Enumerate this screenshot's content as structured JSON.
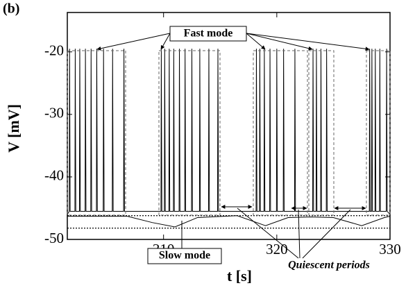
{
  "chart_data": {
    "type": "line",
    "panel_label": "(b)",
    "xlabel": "t [s]",
    "ylabel": "V [mV]",
    "annotations": [
      "Fast mode",
      "Slow mode",
      "Quiescent periods"
    ],
    "xlim": [
      301.5,
      330
    ],
    "ylim": [
      -50,
      -13.7
    ],
    "xticks": [
      310,
      320,
      330
    ],
    "yticks": [
      -20,
      -30,
      -40,
      -50
    ],
    "hlines": [
      -46.2,
      -48.2
    ],
    "series": [
      {
        "color": "#000000",
        "x": [
          301.5,
          301.67,
          301.7,
          301.75,
          302.17,
          302.2,
          302.25,
          302.57,
          302.6,
          302.65,
          303.07,
          303.1,
          303.15,
          303.57,
          303.6,
          303.65,
          304.07,
          304.1,
          304.15,
          304.67,
          304.7,
          304.75,
          305.47,
          305.5,
          305.55,
          306.47,
          306.5,
          306.55,
          309.77,
          309.8,
          309.85,
          310.07,
          310.1,
          310.15,
          310.47,
          310.5,
          310.55,
          310.87,
          310.9,
          310.95,
          311.37,
          311.4,
          311.45,
          311.87,
          311.9,
          311.95,
          312.47,
          312.5,
          312.55,
          313.17,
          313.2,
          313.25,
          313.97,
          314,
          314.05,
          314.77,
          314.8,
          314.85,
          318.17,
          318.2,
          318.25,
          318.47,
          318.5,
          318.55,
          318.87,
          318.9,
          318.95,
          319.37,
          319.4,
          319.45,
          319.97,
          320,
          320.05,
          320.57,
          320.6,
          320.65,
          321.57,
          321.6,
          321.65,
          323.17,
          323.2,
          323.25,
          323.47,
          323.5,
          323.55,
          323.87,
          323.9,
          323.95,
          324.37,
          324.4,
          324.45,
          328.17,
          328.2,
          328.25,
          328.37,
          328.4,
          328.45,
          328.67,
          328.7,
          328.75,
          329.07,
          329.1,
          329.15,
          329.67,
          329.7,
          329.75,
          330
        ],
        "values": [
          -46,
          -45.5,
          -19.5,
          -45.5,
          -45.5,
          -19.5,
          -45.5,
          -45.5,
          -19.5,
          -45.5,
          -45.5,
          -19.5,
          -45.5,
          -45.5,
          -19.5,
          -45.5,
          -45.5,
          -19.5,
          -45.5,
          -45.5,
          -19.5,
          -45.5,
          -45.5,
          -19.5,
          -45.5,
          -45.5,
          -19.5,
          -45.5,
          -45.5,
          -19.5,
          -45.5,
          -45.5,
          -19.5,
          -45.5,
          -45.5,
          -19.5,
          -45.5,
          -45.5,
          -19.5,
          -45.5,
          -45.5,
          -19.5,
          -45.5,
          -45.5,
          -19.5,
          -45.5,
          -45.5,
          -19.5,
          -45.5,
          -45.5,
          -19.5,
          -45.5,
          -45.5,
          -19.5,
          -45.5,
          -45.5,
          -19.5,
          -45.5,
          -45.5,
          -19.5,
          -45.5,
          -45.5,
          -19.5,
          -45.5,
          -45.5,
          -19.5,
          -45.5,
          -45.5,
          -19.5,
          -45.5,
          -45.5,
          -19.5,
          -45.5,
          -45.5,
          -19.5,
          -45.5,
          -45.5,
          -19.5,
          -45.5,
          -45.5,
          -19.5,
          -45.5,
          -45.5,
          -19.5,
          -45.5,
          -45.5,
          -19.5,
          -45.5,
          -45.5,
          -19.5,
          -45.5,
          -45.5,
          -19.5,
          -45.5,
          -45.5,
          -19.5,
          -45.5,
          -45.5,
          -19.5,
          -45.5,
          -45.5,
          -19.5,
          -45.5,
          -45.5,
          -19.5,
          -45.5,
          -46
        ]
      },
      {
        "color": "#000000",
        "x": [
          301.5,
          306.8,
          309,
          311,
          313,
          316.5,
          319,
          321,
          323,
          325,
          327.5,
          329.5,
          330
        ],
        "values": [
          -46.3,
          -46.3,
          -47.3,
          -48,
          -46.5,
          -46.2,
          -47.8,
          -46.5,
          -46.4,
          -46.5,
          -47.8,
          -46.5,
          -46.3
        ]
      }
    ]
  }
}
